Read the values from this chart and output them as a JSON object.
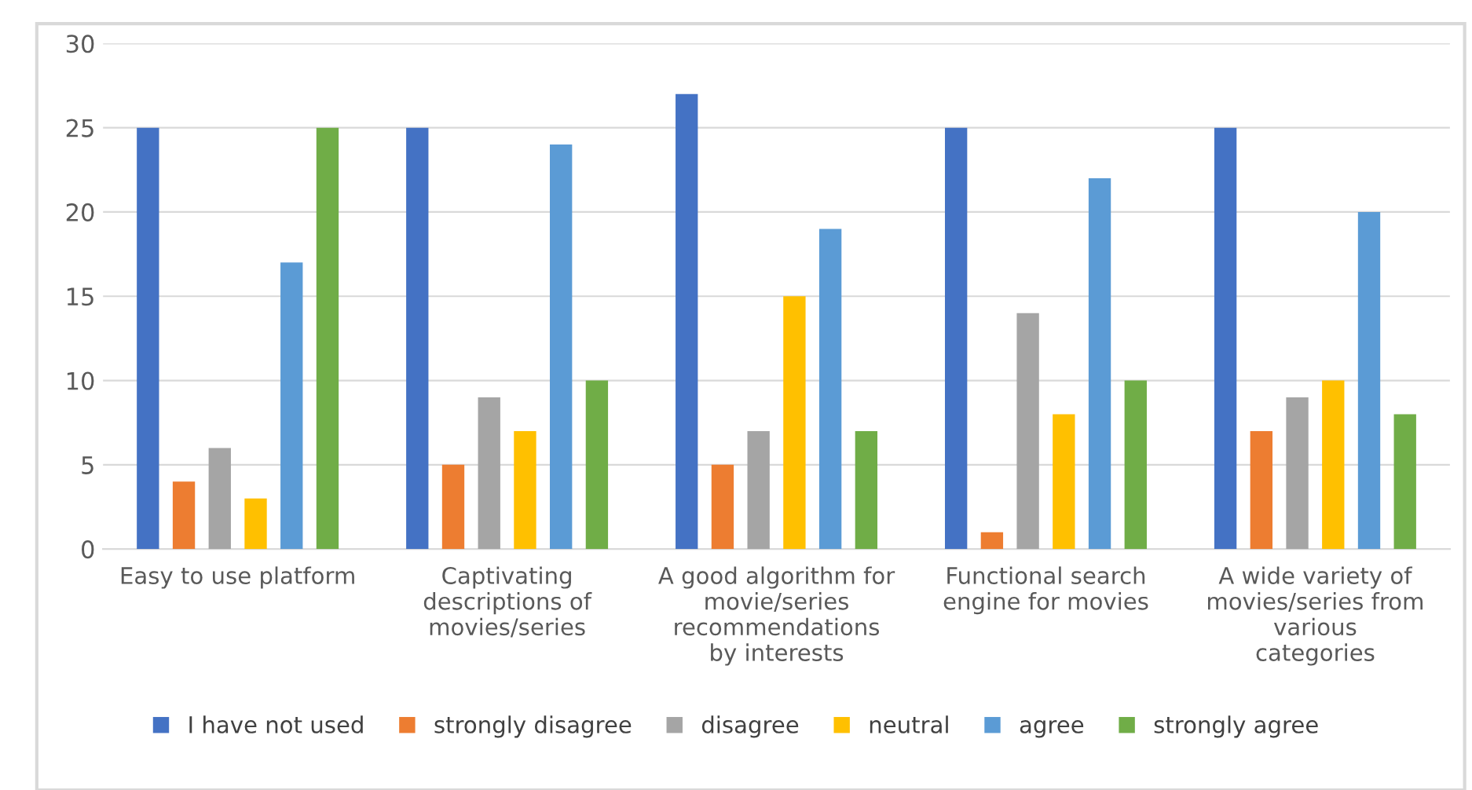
{
  "chart_data": {
    "type": "bar",
    "categories": [
      "Easy to use platform",
      "Captivating\ndescriptions of\nmovies/series",
      "A good algorithm for\nmovie/series\nrecommendations\nby interests",
      "Functional search\nengine for movies",
      "A wide variety of\nmovies/series from\nvarious\ncategories"
    ],
    "series": [
      {
        "name": "I have not used",
        "color": "#4472c4",
        "values": [
          25,
          25,
          27,
          25,
          25
        ]
      },
      {
        "name": "strongly disagree",
        "color": "#ed7d31",
        "values": [
          4,
          5,
          5,
          1,
          7
        ]
      },
      {
        "name": "disagree",
        "color": "#a5a5a5",
        "values": [
          6,
          9,
          7,
          14,
          9
        ]
      },
      {
        "name": "neutral",
        "color": "#ffc000",
        "values": [
          3,
          7,
          15,
          8,
          10
        ]
      },
      {
        "name": "agree",
        "color": "#5b9bd5",
        "values": [
          17,
          24,
          19,
          22,
          20
        ]
      },
      {
        "name": "strongly agree",
        "color": "#70ad47",
        "values": [
          25,
          10,
          7,
          10,
          8
        ]
      }
    ],
    "ylim": [
      0,
      30
    ],
    "yticks": [
      0,
      5,
      10,
      15,
      20,
      25,
      30
    ],
    "grid": "y",
    "legend": "bottom"
  }
}
